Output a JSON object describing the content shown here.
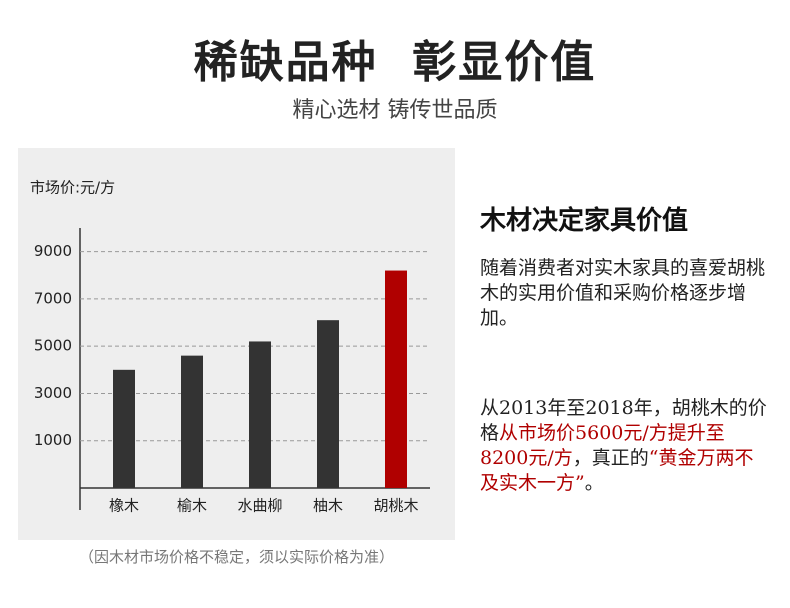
{
  "header": {
    "title": "稀缺品种  彰显价值",
    "subtitle": "精心选材 铸传世品质"
  },
  "chart_data": {
    "type": "bar",
    "y_label": "市场价:元/方",
    "categories": [
      "橡木",
      "榆木",
      "水曲柳",
      "柚木",
      "胡桃木"
    ],
    "series": [
      {
        "name": "市场价",
        "values": [
          4000,
          4600,
          5200,
          6100,
          8200
        ],
        "colors": [
          "#333333",
          "#333333",
          "#333333",
          "#333333",
          "#b00000"
        ]
      }
    ],
    "ylim": [
      -1000,
      10000
    ],
    "yticks": [
      1000,
      3000,
      5000,
      7000,
      9000
    ],
    "grid": true
  },
  "footnote": "（因木材市场价格不稳定，须以实际价格为准）",
  "side": {
    "heading": "木材决定家具价值",
    "paragraph1": "随着消费者对实木家具的喜爱胡桃木的实用价值和采购价格逐步增加。",
    "paragraph2": [
      {
        "text": "从2013年至2018年，胡桃木的价格",
        "highlight": false
      },
      {
        "text": "从市场价5600元/方提升至8200元/方",
        "highlight": true
      },
      {
        "text": "，真正的",
        "highlight": false
      },
      {
        "text": "“黄金万两不及实木一方”",
        "highlight": true
      },
      {
        "text": "。",
        "highlight": false
      }
    ]
  }
}
